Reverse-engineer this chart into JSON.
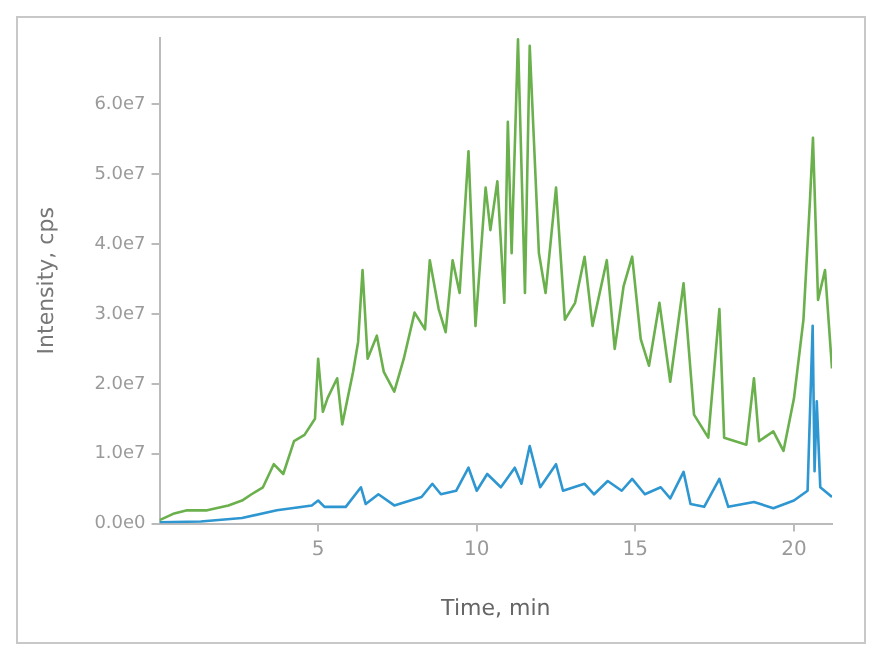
{
  "chart_data": {
    "type": "line",
    "xlabel": "Time, min",
    "ylabel": "Intensity, cps",
    "xlim": [
      0,
      21.2
    ],
    "xticks": [
      5,
      10,
      15,
      20
    ],
    "ylim": [
      0,
      69500000.0
    ],
    "yticks": [
      {
        "value": 0,
        "label": "0.0e0"
      },
      {
        "value": 10000000.0,
        "label": "1.0e7"
      },
      {
        "value": 20000000.0,
        "label": "2.0e7"
      },
      {
        "value": 30000000.0,
        "label": "3.0e7"
      },
      {
        "value": 40000000.0,
        "label": "4.0e7"
      },
      {
        "value": 50000000.0,
        "label": "5.0e7"
      },
      {
        "value": 60000000.0,
        "label": "6.0e7"
      }
    ],
    "grid": false,
    "legend": false,
    "marker": "none",
    "series": [
      {
        "color": "#6ab04c",
        "x": [
          0,
          0.43,
          0.87,
          1.5,
          2.17,
          2.6,
          2.9,
          3.26,
          3.6,
          3.9,
          4.24,
          4.57,
          4.9,
          5.0,
          5.15,
          5.3,
          5.6,
          5.76,
          6.1,
          6.26,
          6.4,
          6.56,
          6.85,
          7.07,
          7.4,
          7.7,
          8.04,
          8.37,
          8.52,
          8.8,
          9.02,
          9.24,
          9.46,
          9.74,
          9.96,
          10.28,
          10.43,
          10.65,
          10.87,
          10.98,
          11.1,
          11.3,
          11.52,
          11.67,
          11.96,
          12.17,
          12.5,
          12.78,
          13.1,
          13.4,
          13.65,
          14.1,
          14.35,
          14.63,
          14.9,
          15.17,
          15.43,
          15.76,
          16.1,
          16.52,
          16.85,
          17.3,
          17.65,
          17.8,
          18.5,
          18.74,
          18.9,
          19.35,
          19.67,
          20.0,
          20.3,
          20.5,
          20.6,
          20.76,
          20.98,
          21.2
        ],
        "values": [
          500000.0,
          1400000.0,
          1900000.0,
          1900000.0,
          2600000.0,
          3300000.0,
          4200000.0,
          5200000.0,
          8500000.0,
          7100000.0,
          11800000.0,
          12700000.0,
          15000000.0,
          23600000.0,
          16000000.0,
          18000000.0,
          20800000.0,
          14200000.0,
          21700000.0,
          26000000.0,
          36300000.0,
          23600000.0,
          26900000.0,
          21700000.0,
          18900000.0,
          23600000.0,
          30200000.0,
          27800000.0,
          37700000.0,
          30700000.0,
          27400000.0,
          37700000.0,
          33000000.0,
          53300000.0,
          28300000.0,
          48100000.0,
          42000000.0,
          49000000.0,
          31600000.0,
          57500000.0,
          38700000.0,
          69300000.0,
          33000000.0,
          68400000.0,
          38700000.0,
          33000000.0,
          48100000.0,
          29200000.0,
          31600000.0,
          38200000.0,
          28300000.0,
          37700000.0,
          25000000.0,
          34000000.0,
          38200000.0,
          26400000.0,
          22600000.0,
          31600000.0,
          20300000.0,
          34400000.0,
          15600000.0,
          12300000.0,
          30700000.0,
          12300000.0,
          11300000.0,
          20800000.0,
          11800000.0,
          13200000.0,
          10400000.0,
          17900000.0,
          29200000.0,
          45800000.0,
          55200000.0,
          32000000.0,
          36300000.0,
          22200000.0
        ]
      },
      {
        "color": "#2e96d0",
        "x": [
          0,
          1.3,
          2.6,
          3.7,
          4.8,
          5.0,
          5.2,
          5.87,
          6.35,
          6.5,
          6.9,
          7.4,
          8.26,
          8.6,
          8.87,
          9.35,
          9.74,
          10.0,
          10.33,
          10.76,
          11.2,
          11.41,
          11.67,
          12.0,
          12.5,
          12.72,
          13.4,
          13.7,
          14.13,
          14.57,
          14.9,
          15.3,
          15.8,
          16.1,
          16.52,
          16.74,
          17.17,
          17.65,
          17.93,
          18.74,
          19.35,
          20.0,
          20.43,
          20.59,
          20.65,
          20.72,
          20.83,
          21.2
        ],
        "values": [
          200000.0,
          300000.0,
          800000.0,
          1900000.0,
          2600000.0,
          3300000.0,
          2400000.0,
          2400000.0,
          5200000.0,
          2800000.0,
          4200000.0,
          2600000.0,
          3800000.0,
          5700000.0,
          4200000.0,
          4700000.0,
          8000000.0,
          4700000.0,
          7100000.0,
          5200000.0,
          8000000.0,
          5700000.0,
          11100000.0,
          5200000.0,
          8500000.0,
          4700000.0,
          5700000.0,
          4200000.0,
          6100000.0,
          4700000.0,
          6400000.0,
          4200000.0,
          5200000.0,
          3600000.0,
          7400000.0,
          2800000.0,
          2400000.0,
          6400000.0,
          2400000.0,
          3100000.0,
          2200000.0,
          3300000.0,
          4700000.0,
          28300000.0,
          7500000.0,
          17500000.0,
          5200000.0,
          3800000.0
        ]
      }
    ]
  }
}
